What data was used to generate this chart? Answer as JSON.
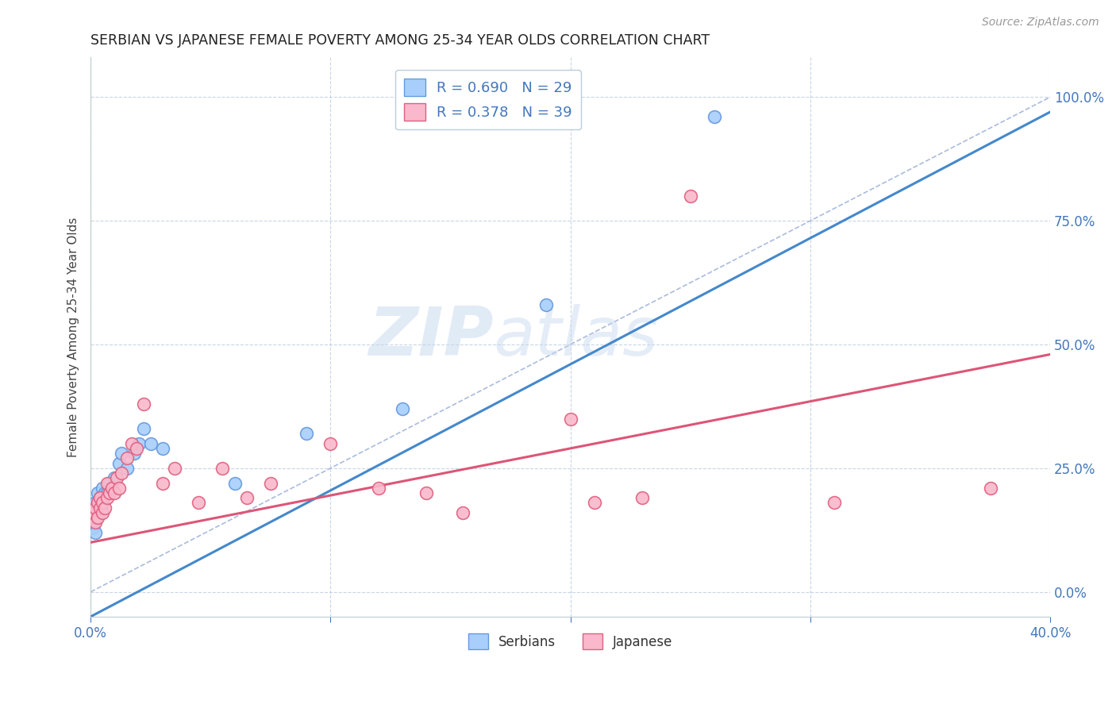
{
  "title": "SERBIAN VS JAPANESE FEMALE POVERTY AMONG 25-34 YEAR OLDS CORRELATION CHART",
  "source": "Source: ZipAtlas.com",
  "ylabel": "Female Poverty Among 25-34 Year Olds",
  "xlim": [
    0.0,
    0.4
  ],
  "ylim": [
    -0.05,
    1.08
  ],
  "yticks": [
    0.0,
    0.25,
    0.5,
    0.75,
    1.0
  ],
  "ytick_labels": [
    "0.0%",
    "25.0%",
    "50.0%",
    "75.0%",
    "100.0%"
  ],
  "xticks": [
    0.0,
    0.1,
    0.2,
    0.3,
    0.4
  ],
  "xtick_labels": [
    "0.0%",
    "",
    "",
    "",
    "40.0%"
  ],
  "serbian_R": 0.69,
  "serbian_N": 29,
  "japanese_R": 0.378,
  "japanese_N": 39,
  "serbian_color": "#A8CFFB",
  "serbian_edge": "#6699DD",
  "japanese_color": "#F9B8CB",
  "japanese_edge": "#E06080",
  "serbian_line_color": "#4488CC",
  "japanese_line_color": "#DD5577",
  "diagonal_color": "#AABBDD",
  "watermark_color": "#C8DDEF",
  "serbian_line_intercept": -0.05,
  "serbian_line_slope": 2.55,
  "japanese_line_intercept": 0.1,
  "japanese_line_slope": 0.95,
  "serbian_scatter_x": [
    0.001,
    0.001,
    0.002,
    0.002,
    0.002,
    0.003,
    0.003,
    0.004,
    0.004,
    0.005,
    0.005,
    0.006,
    0.007,
    0.008,
    0.008,
    0.01,
    0.012,
    0.013,
    0.015,
    0.018,
    0.02,
    0.022,
    0.025,
    0.03,
    0.06,
    0.09,
    0.13,
    0.19,
    0.26
  ],
  "serbian_scatter_y": [
    0.13,
    0.15,
    0.15,
    0.18,
    0.12,
    0.16,
    0.2,
    0.17,
    0.19,
    0.18,
    0.21,
    0.2,
    0.2,
    0.21,
    0.22,
    0.23,
    0.26,
    0.28,
    0.25,
    0.28,
    0.3,
    0.33,
    0.3,
    0.29,
    0.22,
    0.32,
    0.37,
    0.58,
    0.96
  ],
  "japanese_scatter_x": [
    0.001,
    0.001,
    0.002,
    0.002,
    0.003,
    0.003,
    0.004,
    0.004,
    0.005,
    0.005,
    0.006,
    0.007,
    0.007,
    0.008,
    0.009,
    0.01,
    0.011,
    0.012,
    0.013,
    0.015,
    0.017,
    0.019,
    0.022,
    0.03,
    0.035,
    0.045,
    0.055,
    0.065,
    0.075,
    0.1,
    0.12,
    0.14,
    0.155,
    0.2,
    0.21,
    0.23,
    0.25,
    0.31,
    0.375
  ],
  "japanese_scatter_y": [
    0.15,
    0.16,
    0.14,
    0.17,
    0.15,
    0.18,
    0.17,
    0.19,
    0.16,
    0.18,
    0.17,
    0.19,
    0.22,
    0.2,
    0.21,
    0.2,
    0.23,
    0.21,
    0.24,
    0.27,
    0.3,
    0.29,
    0.38,
    0.22,
    0.25,
    0.18,
    0.25,
    0.19,
    0.22,
    0.3,
    0.21,
    0.2,
    0.16,
    0.35,
    0.18,
    0.19,
    0.8,
    0.18,
    0.21
  ]
}
